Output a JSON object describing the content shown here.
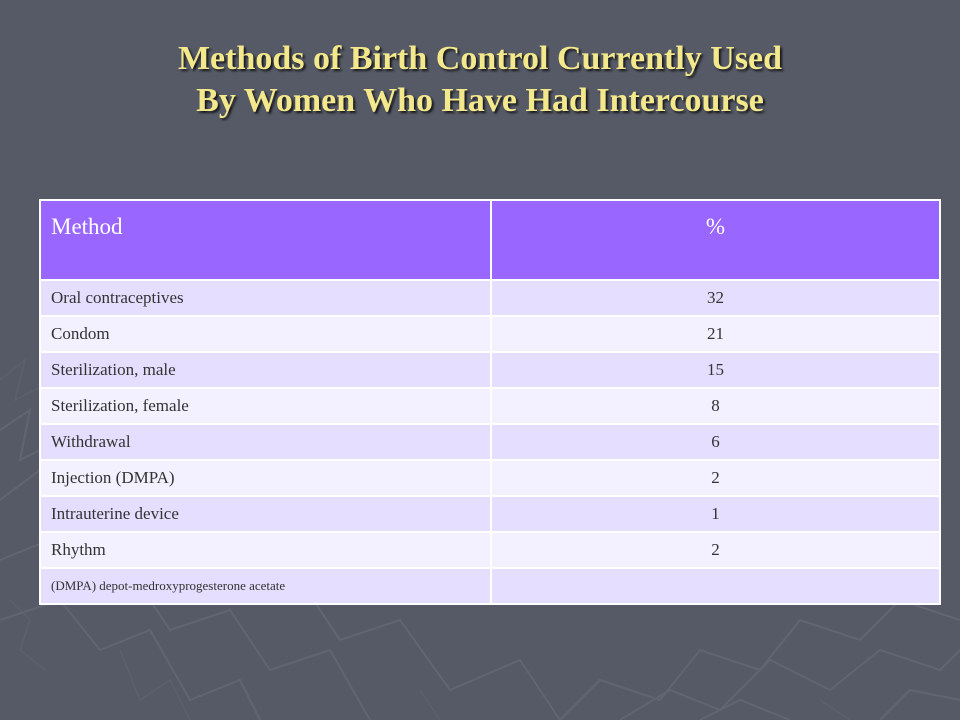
{
  "title": {
    "line1": "Methods of Birth Control Currently Used",
    "line2": "By Women Who Have Had Intercourse"
  },
  "colors": {
    "background": "#565a66",
    "title": "#f3e88c",
    "header": "#9966ff",
    "row_odd": "#e5deff",
    "row_even": "#f3f0ff"
  },
  "table": {
    "headers": [
      "Method",
      "%"
    ],
    "rows": [
      {
        "method": "Oral contraceptives",
        "percent": "32"
      },
      {
        "method": "Condom",
        "percent": "21"
      },
      {
        "method": "Sterilization, male",
        "percent": "15"
      },
      {
        "method": "Sterilization, female",
        "percent": "8"
      },
      {
        "method": "Withdrawal",
        "percent": "6"
      },
      {
        "method": "Injection (DMPA)",
        "percent": "2"
      },
      {
        "method": "Intrauterine device",
        "percent": "1"
      },
      {
        "method": "Rhythm",
        "percent": "2"
      }
    ],
    "footnote": "(DMPA) depot-medroxyprogesterone acetate"
  }
}
